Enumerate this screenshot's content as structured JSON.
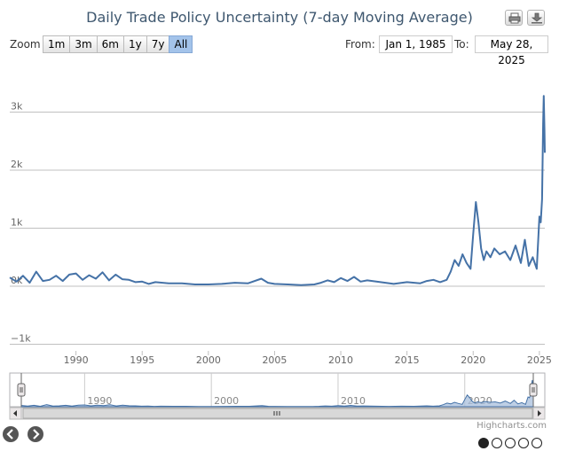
{
  "chart_data": {
    "type": "line",
    "title": "Daily Trade Policy Uncertainty (7-day Moving Average)",
    "xlabel": "",
    "ylabel": "",
    "x_range": [
      1985.0,
      2025.41
    ],
    "ylim": [
      -1000,
      3500
    ],
    "y_ticks": [
      -1000,
      0,
      1000,
      2000,
      3000
    ],
    "y_tick_labels": [
      "−1k",
      "0k",
      "1k",
      "2k",
      "3k"
    ],
    "x_ticks": [
      1990,
      1995,
      2000,
      2005,
      2010,
      2015,
      2020,
      2025
    ],
    "x_tick_labels": [
      "1990",
      "1995",
      "2000",
      "2005",
      "2010",
      "2015",
      "2020",
      "2025"
    ],
    "navigator_ticks": [
      1990,
      2000,
      2010,
      2020
    ],
    "navigator_tick_labels": [
      "1990",
      "2000",
      "2010",
      "2020"
    ],
    "series": [
      {
        "name": "Trade Policy Uncertainty",
        "color": "#4572a7",
        "x": [
          1985.0,
          1985.5,
          1986.0,
          1986.5,
          1987.0,
          1987.5,
          1988.0,
          1988.5,
          1989.0,
          1989.5,
          1990.0,
          1990.5,
          1991.0,
          1991.5,
          1992.0,
          1992.5,
          1993.0,
          1993.5,
          1994.0,
          1994.5,
          1995.0,
          1995.5,
          1996.0,
          1997.0,
          1998.0,
          1999.0,
          2000.0,
          2001.0,
          2002.0,
          2003.0,
          2004.0,
          2004.5,
          2005.0,
          2006.0,
          2007.0,
          2008.0,
          2008.5,
          2009.0,
          2009.5,
          2010.0,
          2010.5,
          2011.0,
          2011.5,
          2012.0,
          2013.0,
          2014.0,
          2015.0,
          2016.0,
          2016.5,
          2017.0,
          2017.5,
          2018.0,
          2018.3,
          2018.6,
          2018.9,
          2019.2,
          2019.5,
          2019.8,
          2020.0,
          2020.2,
          2020.4,
          2020.6,
          2020.8,
          2021.0,
          2021.3,
          2021.6,
          2022.0,
          2022.4,
          2022.8,
          2023.2,
          2023.6,
          2023.9,
          2024.2,
          2024.5,
          2024.8,
          2025.0,
          2025.1,
          2025.2,
          2025.28,
          2025.33,
          2025.38,
          2025.41
        ],
        "values": [
          150,
          80,
          180,
          60,
          250,
          90,
          110,
          180,
          90,
          200,
          220,
          110,
          190,
          130,
          240,
          100,
          200,
          120,
          110,
          70,
          80,
          40,
          70,
          50,
          50,
          30,
          30,
          40,
          60,
          50,
          130,
          60,
          40,
          30,
          20,
          30,
          60,
          100,
          70,
          140,
          90,
          160,
          80,
          100,
          70,
          40,
          70,
          50,
          90,
          110,
          70,
          110,
          250,
          450,
          350,
          550,
          400,
          300,
          900,
          1450,
          1100,
          650,
          450,
          600,
          500,
          650,
          550,
          600,
          450,
          700,
          400,
          800,
          350,
          500,
          300,
          1200,
          1100,
          1500,
          2800,
          3280,
          2700,
          2300
        ]
      }
    ]
  },
  "toolbar": {
    "zoom_label": "Zoom",
    "ranges": [
      "1m",
      "3m",
      "6m",
      "1y",
      "7y",
      "All"
    ],
    "active_range": "All",
    "from_label": "From:",
    "to_label": "To:",
    "from_value": "Jan 1, 1985",
    "to_value": "May 28, 2025"
  },
  "icons": {
    "print": "print-icon",
    "download": "download-icon",
    "prev": "arrow-left-icon",
    "next": "arrow-right-icon"
  },
  "credit": "Highcharts.com",
  "pager": {
    "total": 5,
    "current": 1
  },
  "colors": {
    "line": "#4572a7",
    "navigator_fill": "#a8bfdc",
    "grid": "#c0c0c0",
    "title": "#3e576f",
    "active_button": "#a3c3ea"
  }
}
